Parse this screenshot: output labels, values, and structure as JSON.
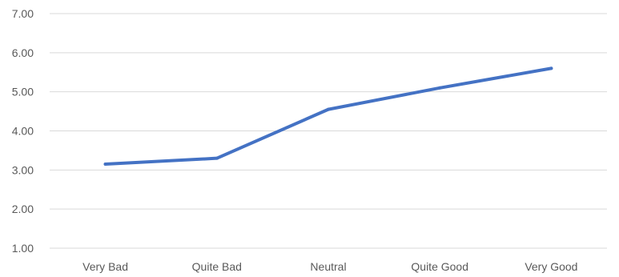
{
  "chart_data": {
    "type": "line",
    "title": "",
    "xlabel": "",
    "ylabel": "",
    "categories": [
      "Very Bad",
      "Quite Bad",
      "Neutral",
      "Quite Good",
      "Very Good"
    ],
    "series": [
      {
        "values": [
          3.15,
          3.3,
          4.55,
          5.1,
          5.6
        ],
        "color": "#4472c4"
      }
    ],
    "ylim": [
      1,
      7
    ],
    "yticks": [
      "1.00",
      "2.00",
      "3.00",
      "4.00",
      "5.00",
      "6.00",
      "7.00"
    ],
    "grid": true,
    "legend": "none"
  }
}
